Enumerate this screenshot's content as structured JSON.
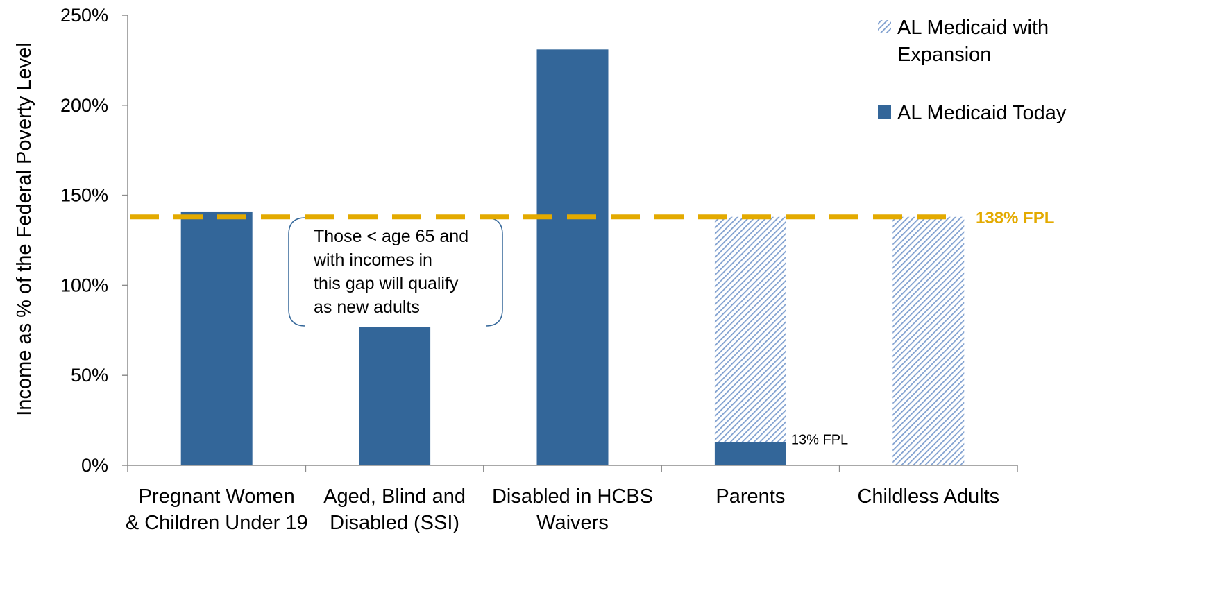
{
  "colors": {
    "today": "#336699",
    "expansion_hatch": "#7f9fcf",
    "reference_line": "#e3aa00",
    "axis": "#8c8c8c",
    "callout_border": "#336699"
  },
  "chart_data": {
    "type": "bar",
    "ylabel": "Income as % of the Federal Poverty Level",
    "ylim": [
      0,
      250
    ],
    "yticks": [
      "0%",
      "50%",
      "100%",
      "150%",
      "200%",
      "250%"
    ],
    "grid": false,
    "legend_position": "top-right",
    "categories": [
      [
        "Pregnant Women",
        "& Children Under 19"
      ],
      [
        "Aged, Blind and",
        "Disabled (SSI)"
      ],
      [
        "Disabled in HCBS",
        "Waivers"
      ],
      [
        "Parents"
      ],
      [
        "Childless Adults"
      ]
    ],
    "series": [
      {
        "name": "AL Medicaid Today",
        "pattern": "solid",
        "values": [
          141,
          77,
          231,
          13,
          0
        ]
      },
      {
        "name": "AL Medicaid with Expansion",
        "pattern": "hatched",
        "values": [
          0,
          0,
          0,
          125,
          138
        ]
      }
    ],
    "legend": [
      {
        "lines": [
          "AL Medicaid with",
          "Expansion"
        ],
        "pattern": "hatched"
      },
      {
        "lines": [
          "AL Medicaid Today"
        ],
        "pattern": "solid"
      }
    ],
    "reference_line": {
      "value": 138,
      "label": "138% FPL"
    },
    "annotations": [
      {
        "text": "13% FPL",
        "category_index": 3,
        "value": 13
      }
    ],
    "callout": {
      "lines": [
        "Those < age 65 and",
        "with incomes in",
        "this gap will qualify",
        "as new adults"
      ]
    }
  }
}
